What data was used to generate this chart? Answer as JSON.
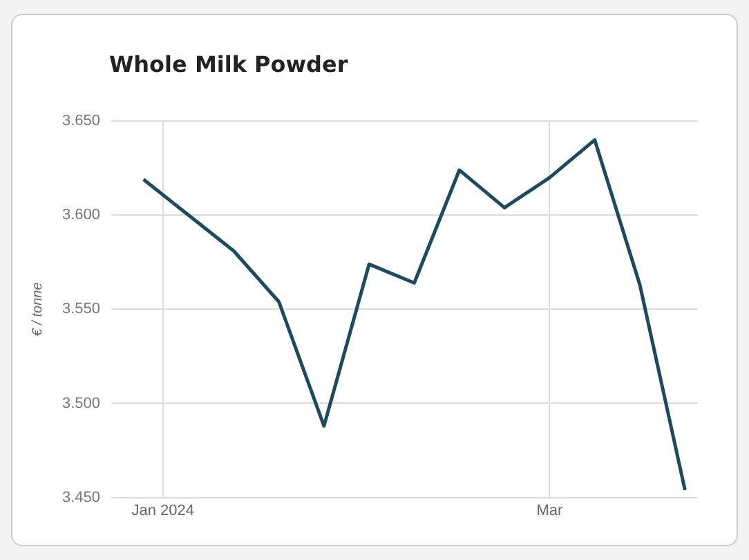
{
  "chart_data": {
    "type": "line",
    "title": "Whole Milk Powder",
    "ylabel": "€ / tonne",
    "x": [
      "2023-12-29",
      "2024-01-05",
      "2024-01-12",
      "2024-01-19",
      "2024-01-26",
      "2024-02-02",
      "2024-02-09",
      "2024-02-16",
      "2024-02-23",
      "2024-03-01",
      "2024-03-08",
      "2024-03-15",
      "2024-03-22"
    ],
    "series": [
      {
        "color": "#1f4a5c",
        "values": [
          3619,
          3600,
          3581,
          3554,
          3488,
          3574,
          3564,
          3624,
          3604,
          3620,
          3640,
          3563,
          3454
        ]
      }
    ],
    "xlim": [
      "2023-12-24",
      "2024-03-24"
    ],
    "xticks": [
      {
        "value": "2024-01-01",
        "label": "Jan 2024"
      },
      {
        "value": "2024-03-01",
        "label": "Mar"
      }
    ],
    "ylim": [
      3450,
      3650
    ],
    "yticks": [
      {
        "value": 3450,
        "label": "3.450"
      },
      {
        "value": 3500,
        "label": "3.500"
      },
      {
        "value": 3550,
        "label": "3.550"
      },
      {
        "value": 3600,
        "label": "3.600"
      },
      {
        "value": 3650,
        "label": "3.650"
      }
    ],
    "grid": true,
    "legend": false,
    "marker": "none",
    "line_style": "solid"
  }
}
